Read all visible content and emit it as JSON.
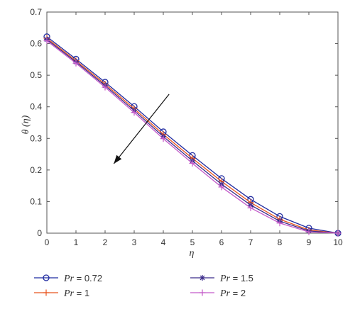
{
  "chart_data": {
    "type": "line",
    "xlabel": "η",
    "ylabel": "θ (η)",
    "xlim": [
      0,
      10
    ],
    "ylim": [
      0,
      0.7
    ],
    "x_ticks": [
      0,
      1,
      2,
      3,
      4,
      5,
      6,
      7,
      8,
      9,
      10
    ],
    "y_ticks": [
      0,
      0.1,
      0.2,
      0.3,
      0.4,
      0.5,
      0.6,
      0.7
    ],
    "x_tick_labels": [
      "0",
      "1",
      "2",
      "3",
      "4",
      "5",
      "6",
      "7",
      "8",
      "9",
      "10"
    ],
    "y_tick_labels": [
      "0",
      "0.1",
      "0.2",
      "0.3",
      "0.4",
      "0.5",
      "0.6",
      "0.7"
    ],
    "grid": false,
    "legend_placement": "bottom",
    "x": [
      0,
      1,
      2,
      3,
      4,
      5,
      6,
      7,
      8,
      9,
      10
    ],
    "series": [
      {
        "name": "Pr = 0.72",
        "var": "Pr",
        "value_text": " = 0.72",
        "color": "#1f2aa0",
        "marker": "circle",
        "values": [
          0.622,
          0.551,
          0.478,
          0.401,
          0.321,
          0.246,
          0.173,
          0.107,
          0.053,
          0.016,
          0.0
        ]
      },
      {
        "name": "Pr = 1",
        "var": "Pr",
        "value_text": " = 1",
        "color": "#e8541e",
        "marker": "plus",
        "values": [
          0.617,
          0.546,
          0.472,
          0.394,
          0.313,
          0.237,
          0.164,
          0.097,
          0.044,
          0.01,
          0.0
        ]
      },
      {
        "name": "Pr = 1.5",
        "var": "Pr",
        "value_text": " = 1.5",
        "color": "#3a2a8a",
        "marker": "star",
        "values": [
          0.613,
          0.542,
          0.467,
          0.388,
          0.306,
          0.229,
          0.155,
          0.089,
          0.038,
          0.007,
          0.0
        ]
      },
      {
        "name": "Pr = 2",
        "var": "Pr",
        "value_text": " = 2",
        "color": "#c45ac9",
        "marker": "plus",
        "values": [
          0.609,
          0.538,
          0.462,
          0.382,
          0.299,
          0.221,
          0.146,
          0.08,
          0.032,
          0.004,
          0.0
        ]
      }
    ],
    "annotation": {
      "type": "arrow",
      "from": [
        4.2,
        0.44
      ],
      "to": [
        2.3,
        0.22
      ]
    }
  }
}
